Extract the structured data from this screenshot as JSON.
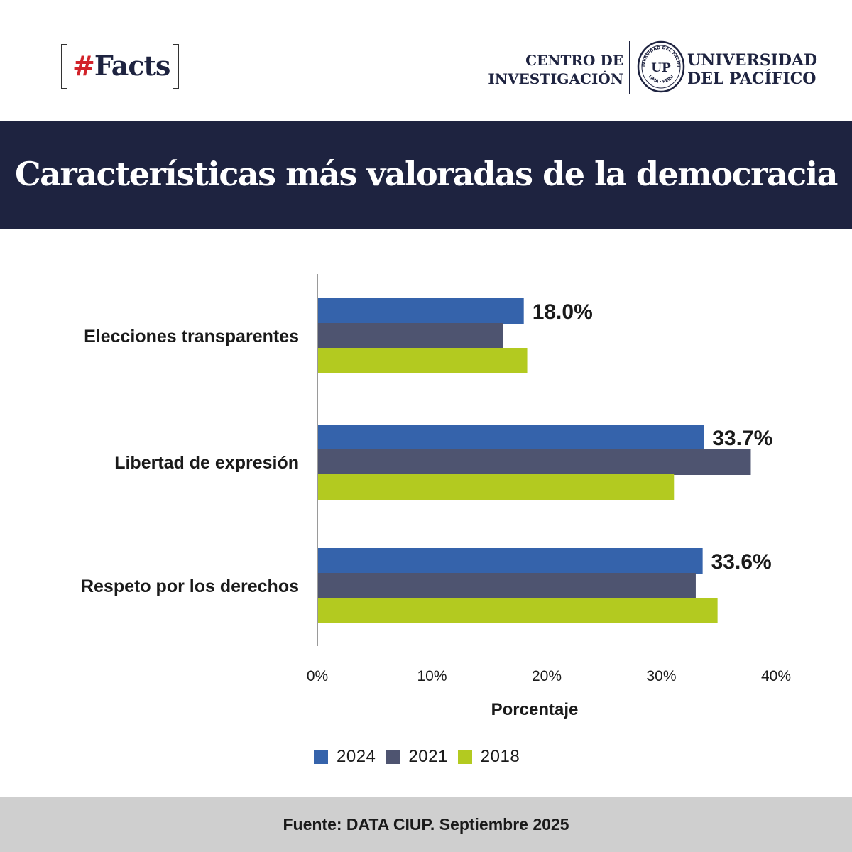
{
  "header": {
    "hash": "#",
    "brand": "Facts",
    "institute_line1": "CENTRO DE",
    "institute_line2": "INVESTIGACIÓN",
    "university_line1": "UNIVERSIDAD",
    "university_line2": "DEL PACÍFICO",
    "seal_text_top": "UNIVERSIDAD DEL PACÍFICO",
    "seal_text_bottom": "LIMA · PERÚ",
    "seal_monogram": "UP"
  },
  "title": "Características más valoradas de la democracia",
  "chart_data": {
    "type": "bar",
    "orientation": "horizontal",
    "categories": [
      "Elecciones transparentes",
      "Libertad de expresión",
      "Respeto por los derechos"
    ],
    "series": [
      {
        "name": "2024",
        "values": [
          18.0,
          33.7,
          33.6
        ],
        "color": "#3563ab"
      },
      {
        "name": "2021",
        "values": [
          16.2,
          37.8,
          33.0
        ],
        "color": "#4e5470"
      },
      {
        "name": "2018",
        "values": [
          18.3,
          31.1,
          34.9
        ],
        "color": "#b3ca20"
      }
    ],
    "data_labels": [
      "18.0%",
      "33.7%",
      "33.6%"
    ],
    "xlabel": "Porcentaje",
    "xlim": [
      0,
      40
    ],
    "xticks": [
      "0%",
      "10%",
      "20%",
      "30%",
      "40%"
    ],
    "grid": false,
    "legend_position": "bottom"
  },
  "footer": {
    "source": "Fuente: DATA CIUP. Septiembre 2025"
  }
}
